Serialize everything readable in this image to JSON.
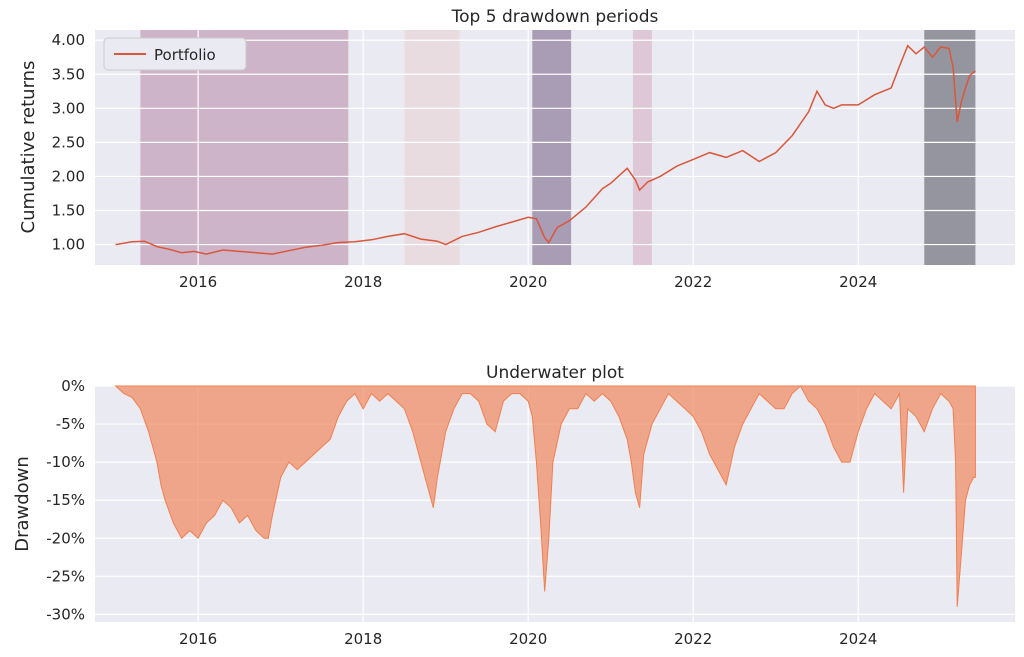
{
  "chart_data": [
    {
      "type": "line",
      "title": "Top 5 drawdown periods",
      "xlabel": "",
      "ylabel": "Cumulative returns",
      "xlim": [
        2014.75,
        2025.9
      ],
      "ylim": [
        0.7,
        4.15
      ],
      "xticks": [
        2016,
        2018,
        2020,
        2022,
        2024
      ],
      "xtick_labels": [
        "2016",
        "2018",
        "2020",
        "2022",
        "2024"
      ],
      "yticks": [
        1.0,
        1.5,
        2.0,
        2.5,
        3.0,
        3.5,
        4.0
      ],
      "ytick_labels": [
        "1.00",
        "1.50",
        "2.00",
        "2.50",
        "3.00",
        "3.50",
        "4.00"
      ],
      "grid": true,
      "legend": {
        "position": "top-left",
        "entries": [
          "Portfolio"
        ]
      },
      "series": [
        {
          "name": "Portfolio",
          "color": "#d9573a",
          "x": [
            2015.0,
            2015.2,
            2015.35,
            2015.5,
            2015.65,
            2015.8,
            2015.95,
            2016.1,
            2016.3,
            2016.5,
            2016.7,
            2016.9,
            2017.1,
            2017.3,
            2017.5,
            2017.7,
            2017.9,
            2018.1,
            2018.3,
            2018.5,
            2018.7,
            2018.9,
            2019.0,
            2019.2,
            2019.4,
            2019.6,
            2019.8,
            2020.0,
            2020.1,
            2020.2,
            2020.25,
            2020.35,
            2020.5,
            2020.7,
            2020.9,
            2021.0,
            2021.2,
            2021.3,
            2021.35,
            2021.45,
            2021.6,
            2021.8,
            2022.0,
            2022.2,
            2022.4,
            2022.6,
            2022.8,
            2023.0,
            2023.2,
            2023.4,
            2023.5,
            2023.6,
            2023.7,
            2023.8,
            2024.0,
            2024.2,
            2024.4,
            2024.5,
            2024.6,
            2024.7,
            2024.8,
            2024.9,
            2025.0,
            2025.1,
            2025.15,
            2025.2,
            2025.25,
            2025.3,
            2025.35,
            2025.42
          ],
          "values": [
            1.0,
            1.04,
            1.05,
            0.97,
            0.93,
            0.88,
            0.9,
            0.86,
            0.92,
            0.9,
            0.88,
            0.86,
            0.91,
            0.96,
            0.99,
            1.03,
            1.04,
            1.07,
            1.12,
            1.16,
            1.08,
            1.05,
            1.0,
            1.12,
            1.18,
            1.26,
            1.33,
            1.4,
            1.38,
            1.1,
            1.03,
            1.25,
            1.35,
            1.55,
            1.82,
            1.9,
            2.12,
            1.95,
            1.8,
            1.92,
            2.0,
            2.15,
            2.25,
            2.35,
            2.28,
            2.38,
            2.22,
            2.35,
            2.6,
            2.95,
            3.25,
            3.05,
            3.0,
            3.05,
            3.05,
            3.2,
            3.3,
            3.62,
            3.92,
            3.8,
            3.9,
            3.75,
            3.9,
            3.88,
            3.6,
            2.8,
            3.1,
            3.3,
            3.48,
            3.55
          ]
        }
      ],
      "drawdown_periods": [
        {
          "start": 2015.3,
          "end": 2017.82,
          "color": "#9b4f7d",
          "opacity": 0.35
        },
        {
          "start": 2018.5,
          "end": 2019.17,
          "color": "#e8c4c0",
          "opacity": 0.35
        },
        {
          "start": 2020.05,
          "end": 2020.52,
          "color": "#5a3e6a",
          "opacity": 0.45
        },
        {
          "start": 2021.27,
          "end": 2021.5,
          "color": "#c77c95",
          "opacity": 0.3
        },
        {
          "start": 2024.8,
          "end": 2025.42,
          "color": "#2e2e3a",
          "opacity": 0.45
        }
      ]
    },
    {
      "type": "area",
      "title": "Underwater plot",
      "xlabel": "",
      "ylabel": "Drawdown",
      "xlim": [
        2014.75,
        2025.9
      ],
      "ylim": [
        -31,
        0
      ],
      "xticks": [
        2016,
        2018,
        2020,
        2022,
        2024
      ],
      "xtick_labels": [
        "2016",
        "2018",
        "2020",
        "2022",
        "2024"
      ],
      "yticks": [
        0,
        -5,
        -10,
        -15,
        -20,
        -25,
        -30
      ],
      "ytick_labels": [
        "0%",
        "-5%",
        "-10%",
        "-15%",
        "-20%",
        "-25%",
        "-30%"
      ],
      "grid": true,
      "series": [
        {
          "name": "",
          "color": "#f08050",
          "x": [
            2015.0,
            2015.1,
            2015.2,
            2015.3,
            2015.4,
            2015.5,
            2015.55,
            2015.6,
            2015.7,
            2015.8,
            2015.9,
            2016.0,
            2016.1,
            2016.2,
            2016.3,
            2016.4,
            2016.5,
            2016.6,
            2016.7,
            2016.8,
            2016.85,
            2016.9,
            2017.0,
            2017.1,
            2017.2,
            2017.3,
            2017.4,
            2017.5,
            2017.6,
            2017.7,
            2017.8,
            2017.9,
            2018.0,
            2018.1,
            2018.2,
            2018.3,
            2018.4,
            2018.5,
            2018.6,
            2018.7,
            2018.8,
            2018.85,
            2018.9,
            2019.0,
            2019.1,
            2019.2,
            2019.3,
            2019.4,
            2019.5,
            2019.6,
            2019.7,
            2019.8,
            2019.9,
            2020.0,
            2020.05,
            2020.1,
            2020.15,
            2020.2,
            2020.25,
            2020.3,
            2020.4,
            2020.5,
            2020.6,
            2020.7,
            2020.8,
            2020.9,
            2021.0,
            2021.1,
            2021.2,
            2021.25,
            2021.3,
            2021.35,
            2021.4,
            2021.5,
            2021.6,
            2021.7,
            2021.8,
            2021.9,
            2022.0,
            2022.1,
            2022.2,
            2022.3,
            2022.4,
            2022.5,
            2022.6,
            2022.7,
            2022.8,
            2022.9,
            2023.0,
            2023.1,
            2023.2,
            2023.3,
            2023.4,
            2023.5,
            2023.6,
            2023.7,
            2023.8,
            2023.9,
            2024.0,
            2024.1,
            2024.2,
            2024.3,
            2024.4,
            2024.5,
            2024.55,
            2024.6,
            2024.7,
            2024.8,
            2024.9,
            2025.0,
            2025.1,
            2025.15,
            2025.18,
            2025.2,
            2025.25,
            2025.3,
            2025.35,
            2025.4,
            2025.42
          ],
          "values": [
            0,
            -1,
            -1.5,
            -3,
            -6,
            -10,
            -13,
            -15,
            -18,
            -20,
            -19,
            -20,
            -18,
            -17,
            -15,
            -16,
            -18,
            -17,
            -19,
            -20,
            -20,
            -17,
            -12,
            -10,
            -11,
            -10,
            -9,
            -8,
            -7,
            -4,
            -2,
            -1,
            -3,
            -1,
            -2,
            -1,
            -2,
            -3,
            -6,
            -10,
            -14,
            -16,
            -12,
            -6,
            -3,
            -1,
            -1,
            -2,
            -5,
            -6,
            -2,
            -1,
            -1,
            -2,
            -4,
            -10,
            -18,
            -27,
            -20,
            -10,
            -5,
            -3,
            -3,
            -1,
            -2,
            -1,
            -2,
            -4,
            -7,
            -10,
            -14,
            -16,
            -9,
            -5,
            -3,
            -1,
            -2,
            -3,
            -4,
            -6,
            -9,
            -11,
            -13,
            -8,
            -5,
            -3,
            -1,
            -2,
            -3,
            -3,
            -1,
            0,
            -2,
            -3,
            -5,
            -8,
            -10,
            -10,
            -6,
            -3,
            -1,
            -2,
            -3,
            -1,
            -14,
            -3,
            -4,
            -6,
            -3,
            -1,
            -2,
            -3,
            -10,
            -29,
            -22,
            -15,
            -13,
            -12,
            -12
          ]
        }
      ]
    }
  ]
}
